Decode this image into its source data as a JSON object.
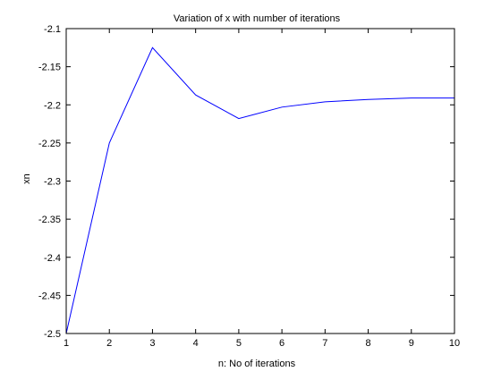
{
  "chart_data": {
    "type": "line",
    "title": "Variation of x with number of iterations",
    "xlabel": "n: No of iterations",
    "ylabel": "xn",
    "xlim": [
      1,
      10
    ],
    "ylim": [
      -2.5,
      -2.1
    ],
    "xticks": [
      1,
      2,
      3,
      4,
      5,
      6,
      7,
      8,
      9,
      10
    ],
    "xtick_labels": [
      "1",
      "2",
      "3",
      "4",
      "5",
      "6",
      "7",
      "8",
      "9",
      "10"
    ],
    "yticks": [
      -2.5,
      -2.45,
      -2.4,
      -2.35,
      -2.3,
      -2.25,
      -2.2,
      -2.15,
      -2.1
    ],
    "ytick_labels": [
      "-2.5",
      "-2.45",
      "-2.4",
      "-2.35",
      "-2.3",
      "-2.25",
      "-2.2",
      "-2.15",
      "-2.1"
    ],
    "grid": false,
    "series": [
      {
        "color": "#0000ff",
        "x": [
          1,
          2,
          3,
          4,
          5,
          6,
          7,
          8,
          9,
          10
        ],
        "y": [
          -2.5,
          -2.25,
          -2.125,
          -2.187,
          -2.218,
          -2.203,
          -2.196,
          -2.193,
          -2.191,
          -2.191
        ]
      }
    ]
  }
}
